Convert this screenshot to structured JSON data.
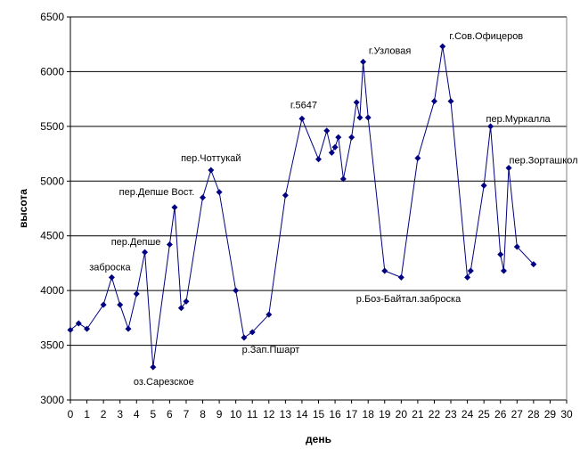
{
  "chart_data": {
    "type": "line",
    "xlabel": "день",
    "ylabel": "высота",
    "xlim": [
      0,
      30
    ],
    "ylim": [
      3000,
      6500
    ],
    "x_ticks": [
      0,
      1,
      2,
      3,
      4,
      5,
      6,
      7,
      8,
      9,
      10,
      11,
      12,
      13,
      14,
      15,
      16,
      17,
      18,
      19,
      20,
      21,
      22,
      23,
      24,
      25,
      26,
      27,
      28,
      29,
      30
    ],
    "y_ticks": [
      3000,
      3500,
      4000,
      4500,
      5000,
      5500,
      6000,
      6500
    ],
    "grid": "horizontal",
    "legend": "none",
    "series": [
      {
        "color": "#000080",
        "points": [
          [
            0,
            3640
          ],
          [
            0.5,
            3700
          ],
          [
            1,
            3650
          ],
          [
            2,
            3870
          ],
          [
            2.5,
            4120
          ],
          [
            3,
            3870
          ],
          [
            3.5,
            3650
          ],
          [
            4,
            3970
          ],
          [
            4.5,
            4350
          ],
          [
            5,
            3300
          ],
          [
            6,
            4420
          ],
          [
            6.3,
            4760
          ],
          [
            6.7,
            3840
          ],
          [
            7,
            3900
          ],
          [
            8,
            4850
          ],
          [
            8.5,
            5100
          ],
          [
            9,
            4900
          ],
          [
            10,
            4000
          ],
          [
            10.5,
            3570
          ],
          [
            11,
            3620
          ],
          [
            12,
            3780
          ],
          [
            13,
            4870
          ],
          [
            14,
            5570
          ],
          [
            15,
            5200
          ],
          [
            15.5,
            5460
          ],
          [
            15.8,
            5260
          ],
          [
            16,
            5310
          ],
          [
            16.2,
            5400
          ],
          [
            16.5,
            5020
          ],
          [
            17,
            5400
          ],
          [
            17.3,
            5720
          ],
          [
            17.5,
            5580
          ],
          [
            17.7,
            6090
          ],
          [
            18,
            5580
          ],
          [
            19,
            4180
          ],
          [
            20,
            4120
          ],
          [
            21,
            5210
          ],
          [
            22,
            5730
          ],
          [
            22.5,
            6230
          ],
          [
            23,
            5730
          ],
          [
            24,
            4120
          ],
          [
            24.2,
            4180
          ],
          [
            25,
            4960
          ],
          [
            25.4,
            5500
          ],
          [
            26,
            4330
          ],
          [
            26.2,
            4180
          ],
          [
            26.5,
            5120
          ],
          [
            27,
            4400
          ],
          [
            28,
            4240
          ]
        ]
      }
    ],
    "annotations": [
      {
        "text": "заброска",
        "x": 2.5,
        "y": 4120
      },
      {
        "text": "пер.Депше",
        "x": 4.5,
        "y": 4350
      },
      {
        "text": "оз.Сарезское",
        "x": 5,
        "y": 3300
      },
      {
        "text": "пер.Депше Вост.",
        "x": 6.3,
        "y": 4760
      },
      {
        "text": "пер.Чоттукай",
        "x": 8.5,
        "y": 5100
      },
      {
        "text": "р.Зап.Пшарт",
        "x": 10.5,
        "y": 3570
      },
      {
        "text": "г.5647",
        "x": 14,
        "y": 5570
      },
      {
        "text": "г.Узловая",
        "x": 17.7,
        "y": 6090
      },
      {
        "text": "р.Боз-Байтал.заброска",
        "x": 19,
        "y": 4180
      },
      {
        "text": "г.Сов.Офицеров",
        "x": 22.5,
        "y": 6230
      },
      {
        "text": "пер.Муркалла",
        "x": 25.4,
        "y": 5500
      },
      {
        "text": "пер.Зорташкол",
        "x": 26.5,
        "y": 5120
      }
    ]
  }
}
